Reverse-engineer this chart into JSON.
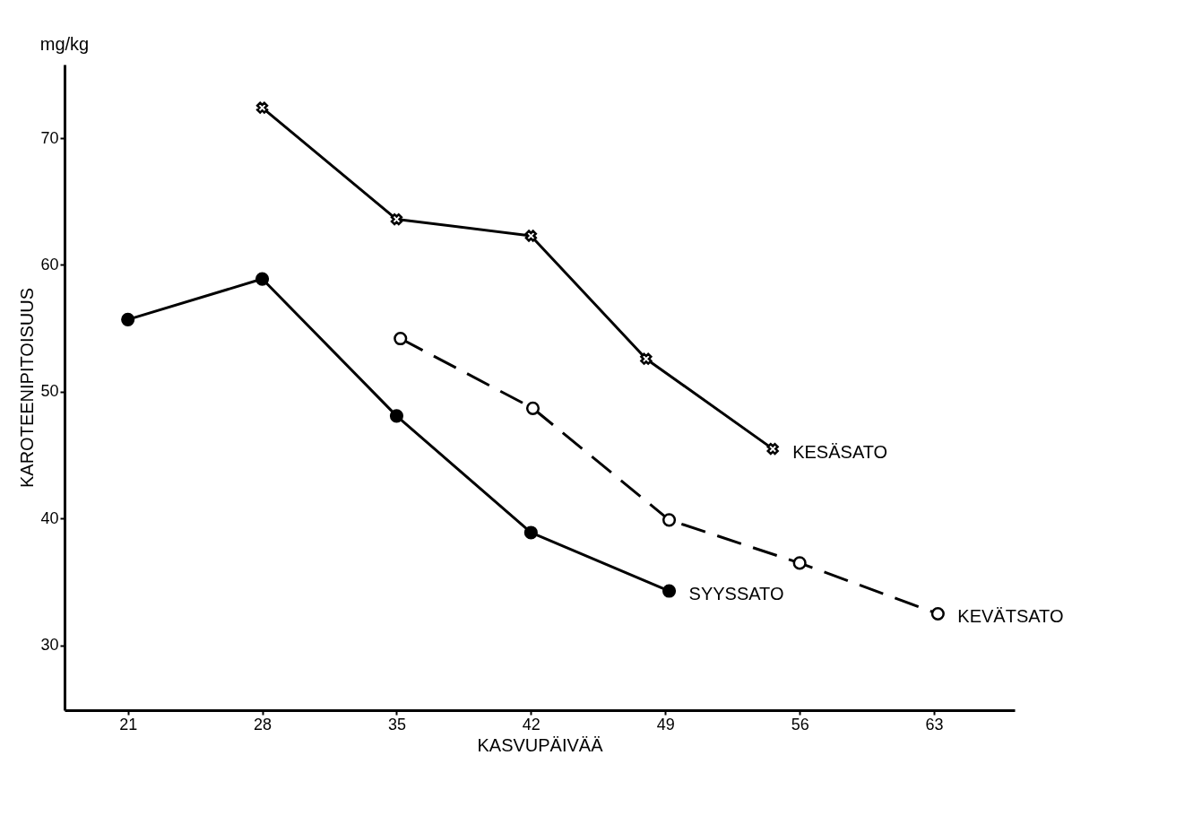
{
  "chart_data": {
    "type": "line",
    "xlabel": "KASVUPÄIVÄÄ",
    "ylabel": "KAROTEENIPITOISUUS",
    "annotations": [
      "mg/kg"
    ],
    "xlim": [
      17.7,
      67.2
    ],
    "ylim": [
      24.9,
      75.8
    ],
    "xticks": [
      21,
      28,
      35,
      42,
      49,
      56,
      63
    ],
    "yticks": [
      30,
      40,
      50,
      60,
      70
    ],
    "grid": false,
    "series": [
      {
        "name": "KESÄSATO",
        "color": "#000000",
        "marker": "cross",
        "line_style": "solid",
        "x": [
          28,
          35,
          42,
          48,
          54.6
        ],
        "values": [
          72.4,
          63.6,
          62.3,
          52.6,
          45.5
        ]
      },
      {
        "name": "KEVÄTSATO",
        "color": "#000000",
        "marker": "circle",
        "line_style": "dashed",
        "x": [
          35.2,
          42.1,
          49.2,
          56,
          63.2
        ],
        "values": [
          54.2,
          48.7,
          39.9,
          36.5,
          32.5
        ]
      },
      {
        "name": "SYYSSATO",
        "color": "#000000",
        "marker": "circle",
        "line_style": "solid",
        "x": [
          21,
          28,
          35,
          42,
          49.2
        ],
        "values": [
          55.7,
          58.9,
          48.1,
          38.9,
          34.3
        ]
      }
    ]
  }
}
